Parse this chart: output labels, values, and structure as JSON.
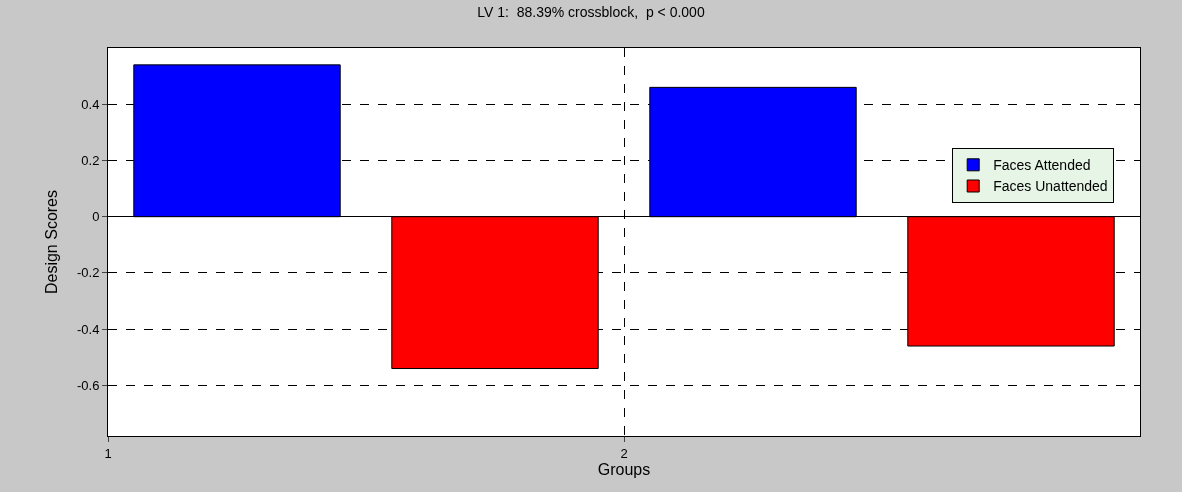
{
  "chart_data": {
    "type": "bar",
    "title": "LV 1:  88.39% crossblock,  p < 0.000",
    "xlabel": "Groups",
    "ylabel": "Design Scores",
    "series": [
      {
        "name": "Faces Attended",
        "color": "#0000ff",
        "x": [
          1.25,
          2.25
        ],
        "values": [
          0.54,
          0.46
        ]
      },
      {
        "name": "Faces Unattended",
        "color": "#ff0000",
        "x": [
          1.75,
          2.75
        ],
        "values": [
          -0.54,
          -0.46
        ]
      }
    ],
    "xlim": [
      1,
      3
    ],
    "xticks": [
      1,
      2
    ],
    "ylim": [
      -0.78,
      0.6
    ],
    "yticks": [
      -0.6,
      -0.4,
      -0.2,
      0,
      0.2,
      0.4
    ],
    "grid": true,
    "legend": "right"
  }
}
